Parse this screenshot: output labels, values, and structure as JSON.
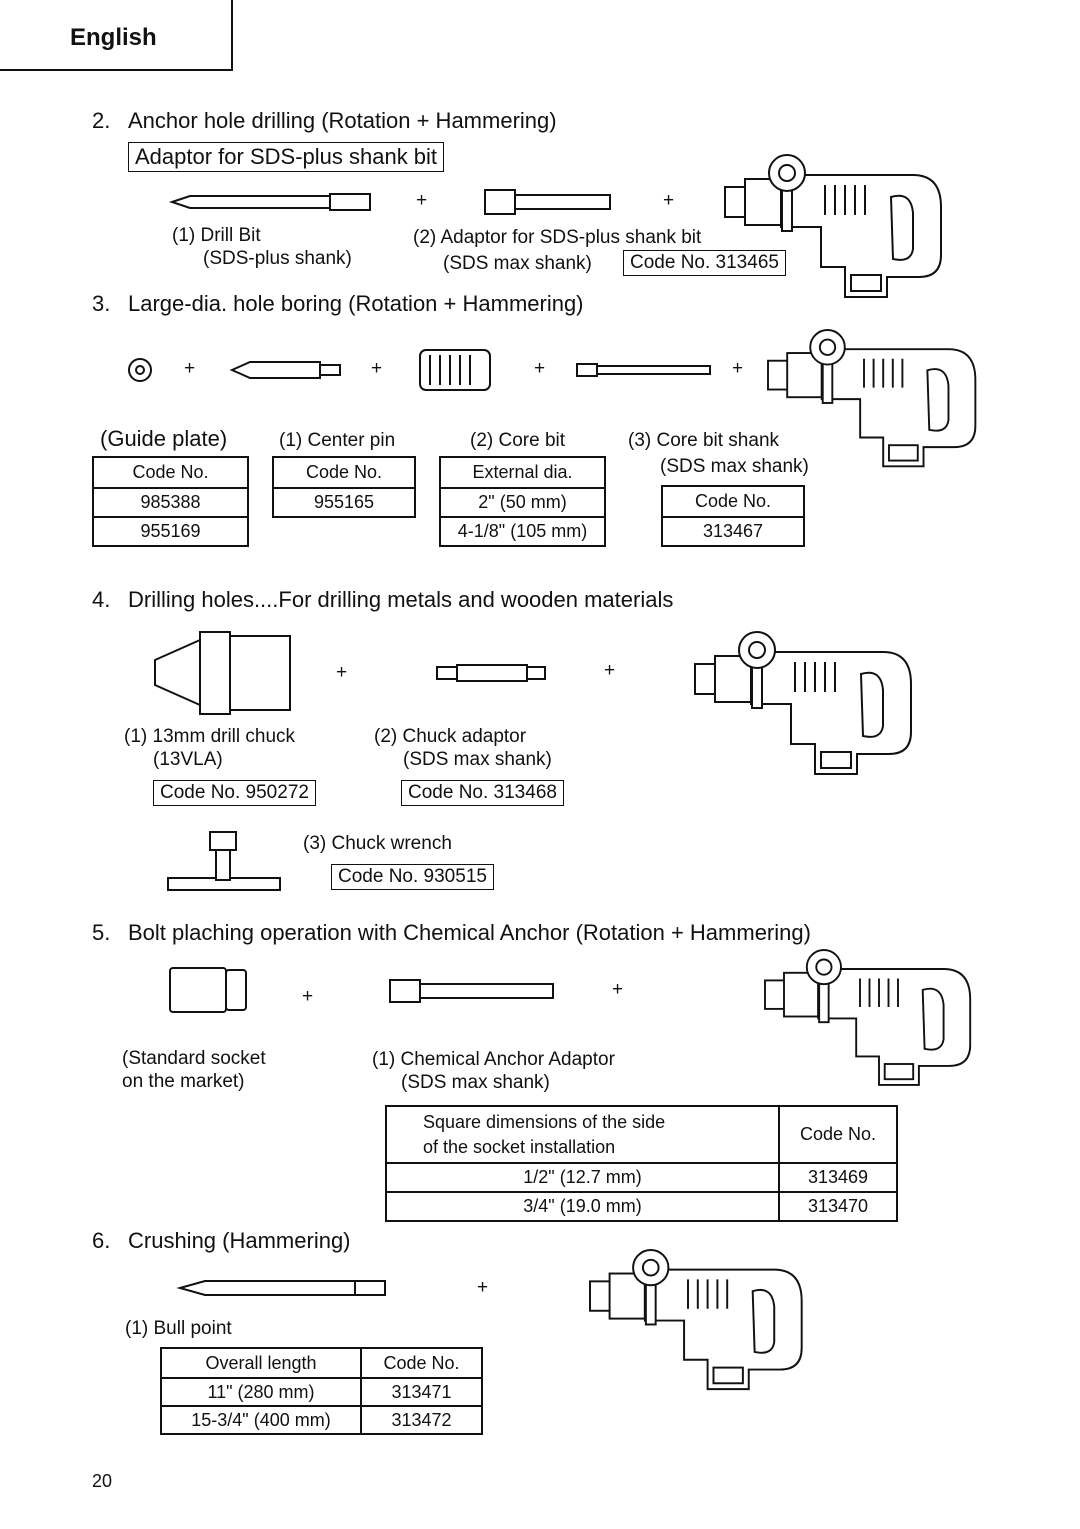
{
  "header": {
    "tab": "English"
  },
  "plus": "+",
  "s2": {
    "number": "2.",
    "title": "Anchor hole drilling (Rotation + Hammering)",
    "box": "Adaptor for SDS-plus shank bit",
    "item1": {
      "label": "(1) Drill Bit",
      "sub": "(SDS-plus shank)"
    },
    "item2": {
      "label": "(2) Adaptor for SDS-plus shank bit",
      "sub": "(SDS max shank)",
      "code": "Code No. 313465"
    }
  },
  "s3": {
    "number": "3.",
    "title": "Large-dia. hole boring (Rotation + Hammering)",
    "guide": {
      "label": "(Guide plate)",
      "rows": [
        "Code No.",
        "985388",
        "955169"
      ]
    },
    "pin": {
      "label": "(1) Center pin",
      "rows": [
        "Code No.",
        "955165"
      ]
    },
    "core": {
      "label": "(2) Core bit",
      "rows": [
        "External dia.",
        "2\" (50 mm)",
        "4-1/8\" (105 mm)"
      ]
    },
    "shank": {
      "label": "(3) Core bit shank",
      "sub": "(SDS max shank)",
      "rows": [
        "Code No.",
        "313467"
      ]
    }
  },
  "s4": {
    "number": "4.",
    "title": "Drilling holes....For drilling metals and wooden materials",
    "item1": {
      "label": "(1) 13mm drill chuck",
      "sub": "(13VLA)",
      "code": "Code No. 950272"
    },
    "item2": {
      "label": "(2) Chuck adaptor",
      "sub": "(SDS max shank)",
      "code": "Code No. 313468"
    },
    "item3": {
      "label": "(3) Chuck wrench",
      "code": "Code No. 930515"
    }
  },
  "s5": {
    "number": "5.",
    "title": "Bolt plaching operation with Chemical Anchor (Rotation + Hammering)",
    "socket": [
      "(Standard socket",
      "on the market)"
    ],
    "item1": {
      "label": "(1) Chemical Anchor Adaptor",
      "sub": "(SDS max shank)"
    },
    "table": {
      "header": [
        [
          "Square dimensions of the side",
          "of the socket installation"
        ],
        "Code No."
      ],
      "rows": [
        [
          "1/2\" (12.7 mm)",
          "313469"
        ],
        [
          "3/4\" (19.0 mm)",
          "313470"
        ]
      ]
    }
  },
  "s6": {
    "number": "6.",
    "title": "Crushing (Hammering)",
    "item1": {
      "label": "(1) Bull point"
    },
    "table": {
      "header": [
        "Overall length",
        "Code No."
      ],
      "rows": [
        [
          "11\" (280 mm)",
          "313471"
        ],
        [
          "15-3/4\" (400 mm)",
          "313472"
        ]
      ]
    }
  },
  "page_number": "20"
}
